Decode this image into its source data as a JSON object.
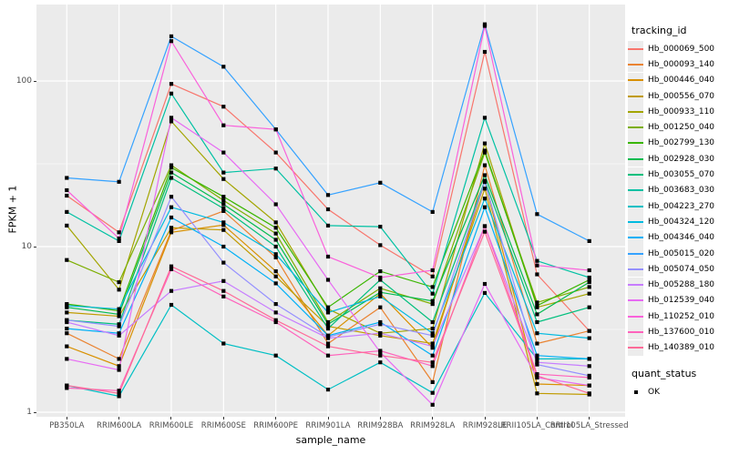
{
  "figure": {
    "background": "#FFFFFF",
    "panel_background": "#EBEBEB",
    "grid_color": "#FFFFFF",
    "tick_label_color": "#4D4D4D",
    "point_color": "#000000"
  },
  "chart_data": {
    "type": "line",
    "title": "",
    "xlabel": "sample_name",
    "ylabel": "FPKM + 1",
    "y_scale": "log10",
    "ylim": [
      1,
      258
    ],
    "y_ticks": [
      {
        "label": "1",
        "value": 1
      },
      {
        "label": "10",
        "value": 10
      },
      {
        "label": "100",
        "value": 100
      }
    ],
    "y_minor": [
      3.1623,
      31.623
    ],
    "grid": "on",
    "legend_position": "right",
    "categories": [
      "PB350LA",
      "RRIM600LA",
      "RRIM600LE",
      "RRIM600SE",
      "RRIM600PE",
      "RRIM901LA",
      "RRIM928BA",
      "RRIM928LA",
      "RRIM928LE",
      "RRII105LA_Control",
      "RRII105LA_Stressed"
    ],
    "series": [
      {
        "name": "Hb_000069_500",
        "color": "#F8766D",
        "values": [
          20.3,
          12.2,
          96,
          70,
          37,
          16.8,
          10.2,
          6.6,
          150,
          6.8,
          3.1
        ]
      },
      {
        "name": "Hb_000093_140",
        "color": "#EA8331",
        "values": [
          3.0,
          2.1,
          12.5,
          16.4,
          8.6,
          2.6,
          4.3,
          1.52,
          31,
          2.6,
          3.1
        ]
      },
      {
        "name": "Hb_000446_040",
        "color": "#D89000",
        "values": [
          2.5,
          1.9,
          12.2,
          13.5,
          7.1,
          2.9,
          5.2,
          2.45,
          24.6,
          1.48,
          1.45
        ]
      },
      {
        "name": "Hb_000556_070",
        "color": "#C09B00",
        "values": [
          4.0,
          3.8,
          13,
          12.6,
          6.6,
          3.3,
          2.9,
          2.6,
          22.4,
          1.3,
          1.28
        ]
      },
      {
        "name": "Hb_000933_110",
        "color": "#A3A500",
        "values": [
          13.4,
          5.5,
          57,
          25.6,
          14,
          4.2,
          3.0,
          3.2,
          42,
          4.3,
          5.2
        ]
      },
      {
        "name": "Hb_001250_040",
        "color": "#7CAE00",
        "values": [
          8.3,
          6.1,
          31,
          19,
          12,
          3.5,
          5.6,
          4.5,
          37,
          4.6,
          5.7
        ]
      },
      {
        "name": "Hb_002799_130",
        "color": "#39B600",
        "values": [
          4.5,
          4.1,
          30,
          20,
          13,
          4.3,
          7.1,
          5.7,
          38,
          4.4,
          6.3
        ]
      },
      {
        "name": "Hb_002928_030",
        "color": "#00BB4E",
        "values": [
          4.3,
          3.9,
          28,
          18,
          11,
          3.4,
          5.3,
          4.7,
          27,
          3.9,
          6.1
        ]
      },
      {
        "name": "Hb_003055_070",
        "color": "#00BF7D",
        "values": [
          3.6,
          3.4,
          26,
          17,
          10,
          3.2,
          6.3,
          3.5,
          25,
          3.5,
          4.3
        ]
      },
      {
        "name": "Hb_003683_030",
        "color": "#00C1A3",
        "values": [
          16.2,
          10.8,
          84,
          28,
          29.6,
          13.4,
          13.2,
          5.2,
          60,
          8.2,
          6.5
        ]
      },
      {
        "name": "Hb_004223_270",
        "color": "#00BFC4",
        "values": [
          1.45,
          1.25,
          4.45,
          2.6,
          2.2,
          1.37,
          2.0,
          1.31,
          5.25,
          2.1,
          2.1
        ]
      },
      {
        "name": "Hb_004324_120",
        "color": "#00BAE0",
        "values": [
          4.4,
          4.2,
          17.3,
          14,
          9,
          4.0,
          5.0,
          3.0,
          19.5,
          3.0,
          2.8
        ]
      },
      {
        "name": "Hb_004346_040",
        "color": "#00B0F6",
        "values": [
          3.2,
          3.0,
          15,
          10,
          6,
          2.9,
          3.5,
          2.2,
          17.3,
          2.2,
          2.1
        ]
      },
      {
        "name": "Hb_005015_020",
        "color": "#35A2FF",
        "values": [
          26,
          24.6,
          186,
          122,
          51,
          20.5,
          24.3,
          16.2,
          220,
          15.7,
          10.8
        ]
      },
      {
        "name": "Hb_005074_050",
        "color": "#9590FF",
        "values": [
          3.6,
          3.3,
          20,
          8,
          4.5,
          2.85,
          3.4,
          2.9,
          24.6,
          1.94,
          1.66
        ]
      },
      {
        "name": "Hb_005288_180",
        "color": "#C77CFF",
        "values": [
          3.5,
          2.9,
          5.4,
          6.2,
          4.0,
          2.8,
          3.0,
          2.5,
          13.3,
          2.0,
          1.9
        ]
      },
      {
        "name": "Hb_012539_040",
        "color": "#E76BF3",
        "values": [
          2.1,
          1.8,
          60,
          37,
          18,
          6.3,
          2.3,
          1.11,
          5.95,
          1.62,
          1.45
        ]
      },
      {
        "name": "Hb_110252_010",
        "color": "#FA62DB",
        "values": [
          21.9,
          11.2,
          174,
          54,
          51,
          8.7,
          6.5,
          7.2,
          215,
          7.7,
          7.2
        ]
      },
      {
        "name": "Hb_137600_010",
        "color": "#FF62BC",
        "values": [
          1.4,
          1.35,
          7.3,
          5.0,
          3.5,
          2.2,
          2.35,
          1.9,
          13.3,
          1.7,
          1.62
        ]
      },
      {
        "name": "Hb_140389_010",
        "color": "#FF6A98",
        "values": [
          1.45,
          1.3,
          7.6,
          5.4,
          3.6,
          2.5,
          2.2,
          2.0,
          12.3,
          1.66,
          1.3
        ]
      }
    ],
    "legend": {
      "color_title": "tracking_id",
      "shape_title": "quant_status",
      "shape_items": [
        {
          "label": "OK",
          "shape": "black-square"
        }
      ]
    }
  }
}
